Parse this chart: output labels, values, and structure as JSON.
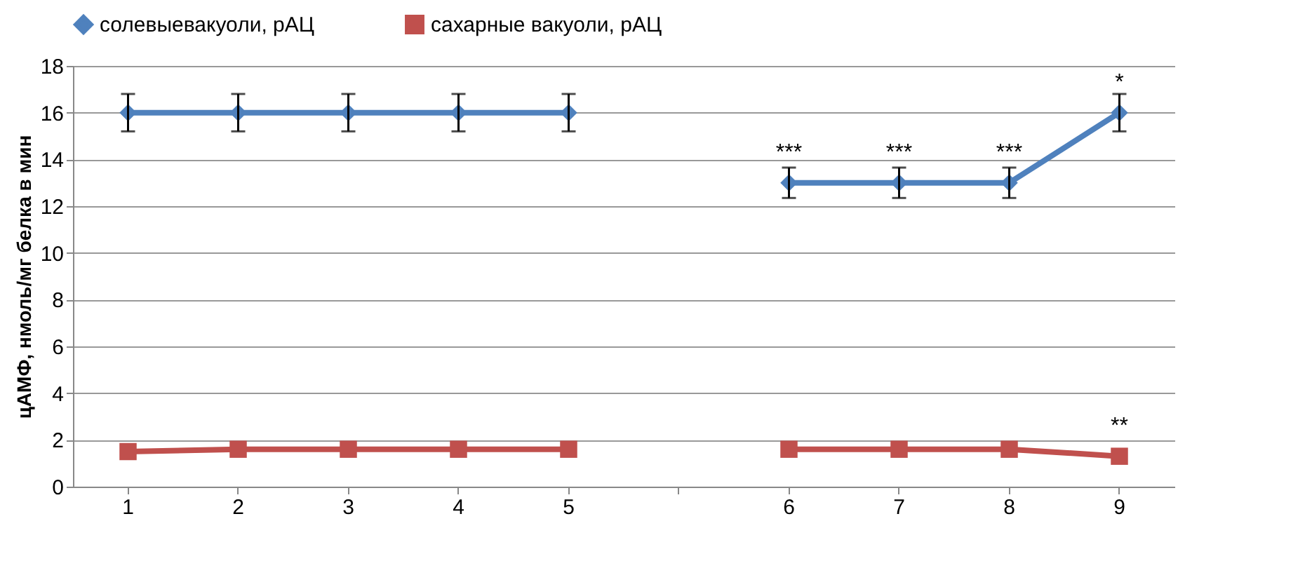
{
  "chart_data": {
    "type": "line",
    "ylabel": "цАМФ, нмоль/мг белка в мин",
    "categories": [
      "1",
      "2",
      "3",
      "4",
      "5",
      null,
      "6",
      "7",
      "8",
      "9"
    ],
    "series": [
      {
        "name": "солевыевакуоли, рАЦ",
        "color": "#4f81bd",
        "marker": "diamond",
        "values": [
          16,
          16,
          16,
          16,
          16,
          null,
          13,
          13,
          13,
          16
        ],
        "errors": [
          0.8,
          0.8,
          0.8,
          0.8,
          0.8,
          null,
          0.65,
          0.65,
          0.65,
          0.8
        ]
      },
      {
        "name": "сахарные вакуоли, рАЦ",
        "color": "#c0504d",
        "marker": "square",
        "values": [
          1.5,
          1.6,
          1.6,
          1.6,
          1.6,
          null,
          1.6,
          1.6,
          1.6,
          1.3
        ]
      }
    ],
    "ylim": [
      0,
      18
    ],
    "yticks": [
      0,
      2,
      4,
      6,
      8,
      10,
      12,
      14,
      16,
      18
    ],
    "grid": "y",
    "legend": "top",
    "annotations": [
      {
        "text": "***",
        "x": "6",
        "y": 13
      },
      {
        "text": "***",
        "x": "7",
        "y": 13
      },
      {
        "text": "***",
        "x": "8",
        "y": 13
      },
      {
        "text": "*",
        "x": "9",
        "y": 16
      },
      {
        "text": "**",
        "x": "9",
        "y": 1.3
      }
    ]
  }
}
